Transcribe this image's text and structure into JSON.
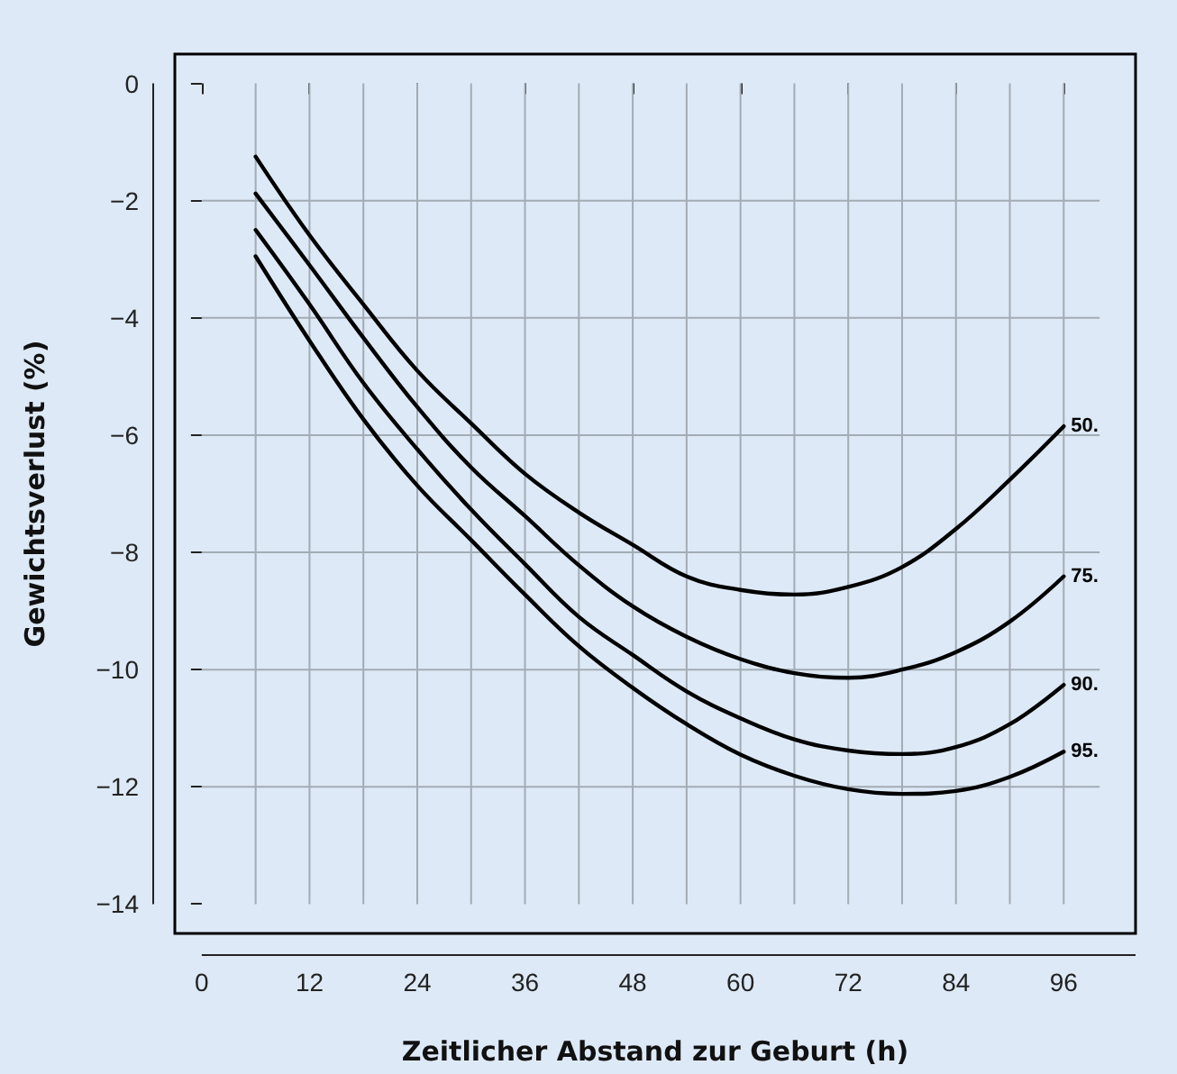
{
  "chart_data": {
    "type": "line",
    "xlabel": "Zeitlicher Abstand zur Geburt (h)",
    "ylabel": "Gewichtsverlust (%)",
    "xlim": [
      -3,
      104
    ],
    "ylim": [
      -14.5,
      0.5
    ],
    "xticks": [
      0,
      12,
      24,
      36,
      48,
      60,
      72,
      84,
      96
    ],
    "yticks": [
      {
        "value": 0,
        "label": "0"
      },
      {
        "value": -2,
        "label": "−2"
      },
      {
        "value": -4,
        "label": "−4"
      },
      {
        "value": -6,
        "label": "−6"
      },
      {
        "value": -8,
        "label": "−8"
      },
      {
        "value": -10,
        "label": "−10"
      },
      {
        "value": -12,
        "label": "−12"
      },
      {
        "value": -14,
        "label": "−14"
      }
    ],
    "grid": true,
    "legend": false,
    "marker": "none",
    "line_style": "solid",
    "series": [
      {
        "name": "50.",
        "color": "#000000",
        "x": [
          6,
          12,
          18,
          24,
          30,
          36,
          42,
          48,
          54,
          60,
          66,
          72,
          78,
          84,
          90,
          96
        ],
        "values": [
          -1.25,
          -2.59,
          -3.77,
          -4.9,
          -5.8,
          -6.66,
          -7.32,
          -7.87,
          -8.41,
          -8.64,
          -8.72,
          -8.59,
          -8.25,
          -7.6,
          -6.76,
          -5.85
        ]
      },
      {
        "name": "75.",
        "color": "#000000",
        "x": [
          6,
          12,
          18,
          24,
          30,
          36,
          42,
          48,
          54,
          60,
          66,
          72,
          78,
          84,
          90,
          96
        ],
        "values": [
          -1.88,
          -3.1,
          -4.34,
          -5.52,
          -6.55,
          -7.38,
          -8.22,
          -8.92,
          -9.44,
          -9.82,
          -10.06,
          -10.14,
          -10,
          -9.7,
          -9.18,
          -8.41
        ]
      },
      {
        "name": "90.",
        "color": "#000000",
        "x": [
          6,
          12,
          18,
          24,
          30,
          36,
          42,
          48,
          54,
          60,
          66,
          72,
          78,
          84,
          90,
          96
        ],
        "values": [
          -2.5,
          -3.77,
          -5.11,
          -6.24,
          -7.27,
          -8.2,
          -9.1,
          -9.75,
          -10.37,
          -10.83,
          -11.19,
          -11.38,
          -11.44,
          -11.32,
          -10.93,
          -10.26
        ]
      },
      {
        "name": "95.",
        "color": "#000000",
        "x": [
          6,
          12,
          18,
          24,
          30,
          36,
          42,
          48,
          54,
          60,
          66,
          72,
          78,
          84,
          90,
          96
        ],
        "values": [
          -2.95,
          -4.39,
          -5.73,
          -6.86,
          -7.79,
          -8.72,
          -9.6,
          -10.31,
          -10.93,
          -11.45,
          -11.81,
          -12.04,
          -12.12,
          -12.07,
          -11.83,
          -11.4
        ]
      }
    ]
  }
}
